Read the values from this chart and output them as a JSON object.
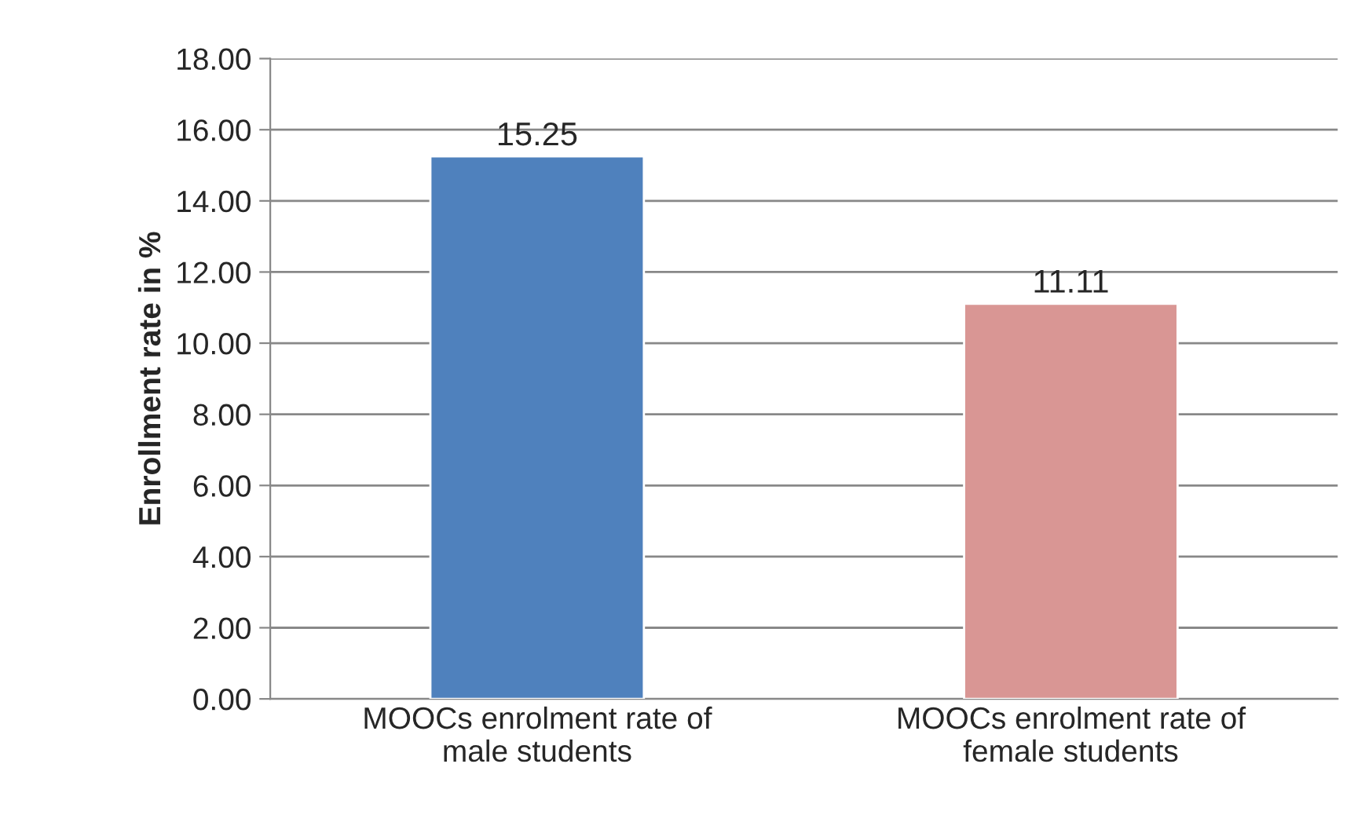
{
  "chart_data": {
    "type": "bar",
    "ylabel": "Enrollment rate in %",
    "categories": [
      "MOOCs enrolment rate of\nmale students",
      "MOOCs enrolment rate of\nfemale students"
    ],
    "values": [
      15.25,
      11.11
    ],
    "colors": [
      "#4f81bd",
      "#d99694"
    ],
    "ylim": [
      0,
      18
    ],
    "yticks": [
      {
        "value": 0,
        "label": "0.00"
      },
      {
        "value": 2,
        "label": "2.00"
      },
      {
        "value": 4,
        "label": "4.00"
      },
      {
        "value": 6,
        "label": "6.00"
      },
      {
        "value": 8,
        "label": "8.00"
      },
      {
        "value": 10,
        "label": "10.00"
      },
      {
        "value": 12,
        "label": "12.00"
      },
      {
        "value": 14,
        "label": "14.00"
      },
      {
        "value": 16,
        "label": "16.00"
      },
      {
        "value": 18,
        "label": "18.00"
      }
    ],
    "grid": "y",
    "data_labels": true
  }
}
